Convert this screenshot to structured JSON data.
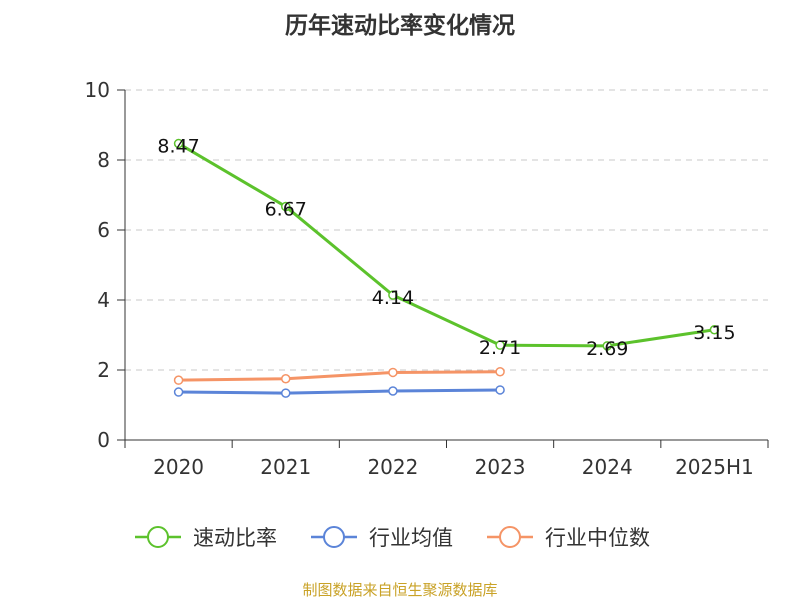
{
  "title": "历年速动比率变化情况",
  "source": "制图数据来自恒生聚源数据库",
  "chart_data": {
    "type": "line",
    "categories": [
      "2020",
      "2021",
      "2022",
      "2023",
      "2024",
      "2025H1"
    ],
    "ylim": [
      0,
      10
    ],
    "yticks": [
      0,
      2,
      4,
      6,
      8,
      10
    ],
    "grid": true,
    "legend_position": "bottom",
    "series": [
      {
        "name": "速动比率",
        "color": "#5cc22c",
        "values": [
          8.47,
          6.67,
          4.14,
          2.71,
          2.69,
          3.15
        ],
        "show_labels": true
      },
      {
        "name": "行业均值",
        "color": "#5b84d8",
        "values": [
          1.37,
          1.34,
          1.4,
          1.43,
          null,
          null
        ],
        "show_labels": false
      },
      {
        "name": "行业中位数",
        "color": "#f59466",
        "values": [
          1.71,
          1.75,
          1.93,
          1.95,
          null,
          null
        ],
        "show_labels": false
      }
    ]
  }
}
